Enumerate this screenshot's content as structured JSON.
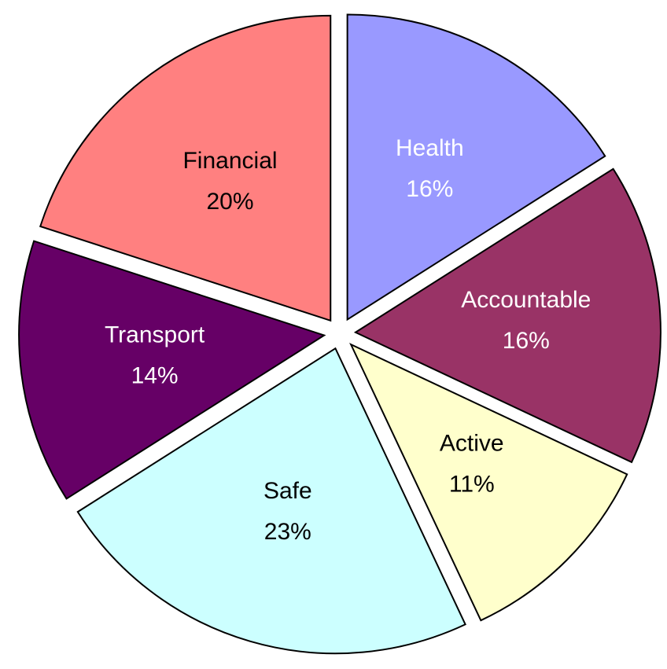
{
  "chart_data": {
    "type": "pie",
    "categories": [
      "Health",
      "Accountable",
      "Active",
      "Safe",
      "Transport",
      "Financial"
    ],
    "values": [
      16,
      16,
      11,
      23,
      14,
      20
    ],
    "value_labels": [
      "16%",
      "16%",
      "11%",
      "23%",
      "14%",
      "20%"
    ],
    "colors": [
      "#9999ff",
      "#993366",
      "#ffffcc",
      "#ccffff",
      "#660066",
      "#ff8080"
    ],
    "label_colors": [
      "#ffffff",
      "#ffffff",
      "#000000",
      "#000000",
      "#ffffff",
      "#000000"
    ]
  }
}
